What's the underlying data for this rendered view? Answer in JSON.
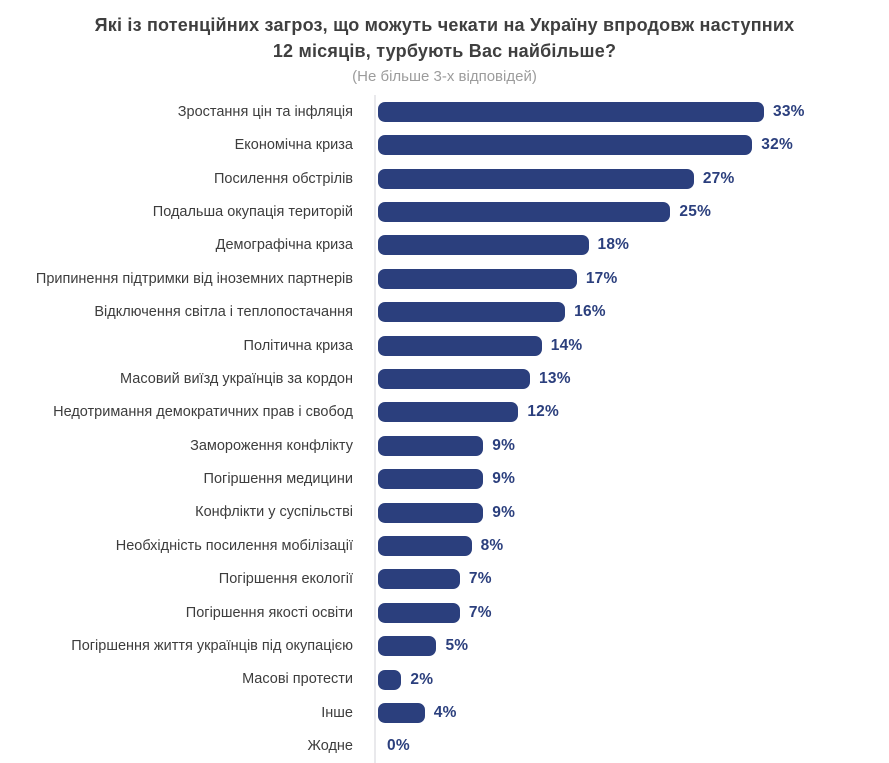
{
  "header": {
    "title": "Які із потенційних загроз, що можуть чекати на Україну впродовж наступних 12 місяців, турбують Вас найбільше?",
    "subtitle": "(Не більше 3-х відповідей)"
  },
  "colors": {
    "bar": "#2b3f7d",
    "value_text": "#2b3f7d",
    "label_text": "#3d3d3d",
    "title_text": "#3f3f3f",
    "subtitle_text": "#9c9c9c",
    "axis_line": "#e9e9ec",
    "background": "#ffffff"
  },
  "chart_data": {
    "type": "bar",
    "orientation": "horizontal",
    "title": "Які із потенційних загроз, що можуть чекати на Україну впродовж наступних 12 місяців, турбують Вас найбільше?",
    "subtitle": "(Не більше 3-х відповідей)",
    "unit": "%",
    "xlim": [
      0,
      33
    ],
    "grid": false,
    "legend": false,
    "value_label_position": "outside-end",
    "categories": [
      "Зростання цін та інфляція",
      "Економічна криза",
      "Посилення обстрілів",
      "Подальша окупація територій",
      "Демографічна криза",
      "Припинення підтримки від іноземних партнерів",
      "Відключення світла і теплопостачання",
      "Політична криза",
      "Масовий виїзд українців за кордон",
      "Недотримання демократичних прав і свобод",
      "Замороження конфлікту",
      "Погіршення медицини",
      "Конфлікти у суспільстві",
      "Необхідність посилення мобілізації",
      "Погіршення екології",
      "Погіршення якості освіти",
      "Погіршення життя українців під окупацією",
      "Масові протести",
      "Інше",
      "Жодне"
    ],
    "values": [
      33,
      32,
      27,
      25,
      18,
      17,
      16,
      14,
      13,
      12,
      9,
      9,
      9,
      8,
      7,
      7,
      5,
      2,
      4,
      0
    ],
    "value_labels": [
      "33%",
      "32%",
      "27%",
      "25%",
      "18%",
      "17%",
      "16%",
      "14%",
      "13%",
      "12%",
      "9%",
      "9%",
      "9%",
      "8%",
      "7%",
      "7%",
      "5%",
      "2%",
      "4%",
      "0%"
    ]
  }
}
